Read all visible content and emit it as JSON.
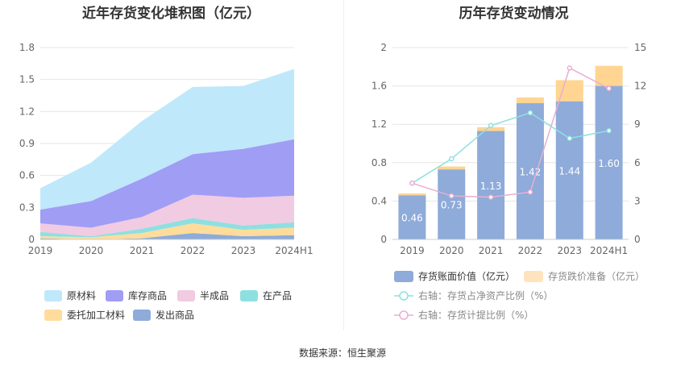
{
  "left_title": "近年存货变化堆积图（亿元）",
  "right_title": "历年存货变动情况",
  "source": "数据来源：恒生聚源",
  "chart_data": [
    {
      "type": "area",
      "stacked": true,
      "title": "近年存货变化堆积图（亿元）",
      "categories": [
        "2019",
        "2020",
        "2021",
        "2022",
        "2023",
        "2024H1"
      ],
      "ylim": [
        0,
        1.8
      ],
      "yticks": [
        "0",
        "0.3",
        "0.6",
        "0.9",
        "1.2",
        "1.5",
        "1.8"
      ],
      "grid": true,
      "legend_position": "bottom",
      "series": [
        {
          "name": "发出商品",
          "color": "#8eabd9",
          "values": [
            0.01,
            0.0,
            0.01,
            0.06,
            0.03,
            0.04
          ]
        },
        {
          "name": "委托加工材料",
          "color": "#ffdc9b",
          "values": [
            0.02,
            0.02,
            0.05,
            0.09,
            0.06,
            0.07
          ]
        },
        {
          "name": "在产品",
          "color": "#8ee0e0",
          "values": [
            0.04,
            0.01,
            0.04,
            0.05,
            0.04,
            0.05
          ]
        },
        {
          "name": "半成品",
          "color": "#f0cbe2",
          "values": [
            0.08,
            0.08,
            0.11,
            0.22,
            0.26,
            0.25
          ]
        },
        {
          "name": "库存商品",
          "color": "#a09df5",
          "values": [
            0.13,
            0.25,
            0.36,
            0.38,
            0.46,
            0.53
          ]
        },
        {
          "name": "原材料",
          "color": "#bfe8fb",
          "values": [
            0.2,
            0.36,
            0.54,
            0.63,
            0.59,
            0.66
          ]
        }
      ],
      "legend_order": [
        "原材料",
        "库存商品",
        "半成品",
        "在产品",
        "委托加工材料",
        "发出商品"
      ]
    },
    {
      "type": "bar",
      "title": "历年存货变动情况",
      "categories": [
        "2019",
        "2020",
        "2021",
        "2022",
        "2023",
        "2024H1"
      ],
      "ylim": [
        0,
        2
      ],
      "yticks": [
        "0",
        "0.4",
        "0.8",
        "1.2",
        "1.6",
        "2"
      ],
      "y2lim": [
        0,
        15
      ],
      "y2ticks": [
        "0",
        "3",
        "6",
        "9",
        "12",
        "15"
      ],
      "grid": true,
      "legend_position": "bottom",
      "bars": [
        {
          "name": "存货账面价值（亿元）",
          "color": "#8eabd9",
          "values": [
            0.46,
            0.73,
            1.13,
            1.42,
            1.44,
            1.6
          ],
          "labels": [
            "0.46",
            "0.73",
            "1.13",
            "1.42",
            "1.44",
            "1.60"
          ]
        },
        {
          "name": "存货跌价准备（亿元）",
          "color": "#ffd591",
          "values": [
            0.02,
            0.03,
            0.04,
            0.06,
            0.22,
            0.21
          ]
        }
      ],
      "lines": [
        {
          "name": "右轴：存货占净资产比例（%）",
          "color": "#8ee0e0",
          "axis": "right",
          "values": [
            4.4,
            6.3,
            8.9,
            9.9,
            7.9,
            8.5
          ]
        },
        {
          "name": "右轴：存货计提比例（%）",
          "color": "#e9aed3",
          "axis": "right",
          "values": [
            4.4,
            3.4,
            3.3,
            3.7,
            13.4,
            11.8
          ]
        }
      ]
    }
  ]
}
